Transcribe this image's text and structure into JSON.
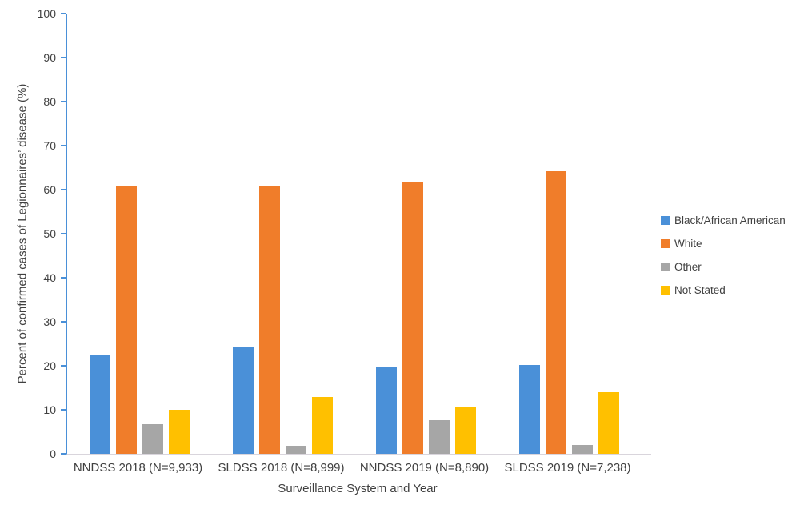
{
  "chart_data": {
    "type": "bar",
    "title": "",
    "xlabel": "Surveillance System and Year",
    "ylabel": "Percent of confirmed cases of Legionnaires’ disease (%)",
    "ylim": [
      0,
      100
    ],
    "yticks": [
      0,
      10,
      20,
      30,
      40,
      50,
      60,
      70,
      80,
      90,
      100
    ],
    "grid": false,
    "legend_position": "right",
    "categories": [
      "NNDSS 2018 (N=9,933)",
      "SLDSS 2018 (N=8,999)",
      "NNDSS 2019 (N=8,890)",
      "SLDSS 2019 (N=7,238)"
    ],
    "series": [
      {
        "name": "Black/African American",
        "color": "#4A90D8",
        "values": [
          22.6,
          24.1,
          19.9,
          20.1
        ]
      },
      {
        "name": "White",
        "color": "#F07D2A",
        "values": [
          60.7,
          61.0,
          61.7,
          64.1
        ]
      },
      {
        "name": "Other",
        "color": "#A6A6A6",
        "values": [
          6.7,
          1.8,
          7.7,
          2.0
        ]
      },
      {
        "name": "Not Stated",
        "color": "#FFC000",
        "values": [
          10.0,
          13.0,
          10.8,
          14.0
        ]
      }
    ],
    "colors": {
      "y_axis_line": "#4A90D8",
      "x_axis_line": "#D9D5DC",
      "text": "#404040"
    }
  }
}
